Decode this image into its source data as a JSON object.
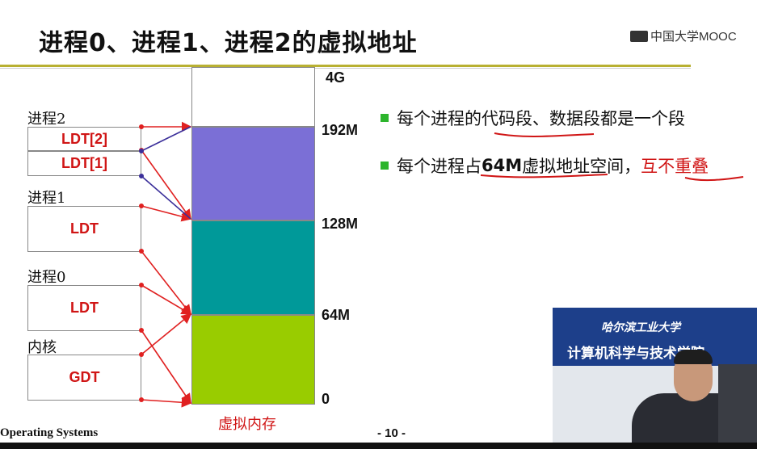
{
  "slide": {
    "title": "进程0、进程1、进程2的虚拟地址",
    "logo_text": "中国大学MOOC",
    "process_labels": {
      "p2": "进程2",
      "p1": "进程1",
      "p0": "进程0",
      "kernel": "内核"
    },
    "boxes": {
      "ldt2": "LDT[2]",
      "ldt1": "LDT[1]",
      "ldt_p1": "LDT",
      "ldt_p0": "LDT",
      "gdt": "GDT"
    },
    "addresses": {
      "a4g": "4G",
      "a192": "192M",
      "a128": "128M",
      "a64": "64M",
      "a0": "0"
    },
    "segment_colors": {
      "kernel": "#99cc00",
      "p1": "#009999",
      "p2": "#7b6fd6"
    },
    "bullets": {
      "b1": {
        "pre": "每个进程的",
        "u": "代码段、数据段",
        "post": "都是一个段"
      },
      "b2": {
        "pre": "每个进程占",
        "bold": "64M",
        "mid": "虚拟地址",
        "mid2": "空间，",
        "red": "互不重叠"
      }
    },
    "memory_caption": "虚拟内存",
    "footer": {
      "course": "Operating Systems",
      "page": "- 10 -"
    },
    "video": {
      "school": "哈尔滨工业大学",
      "dept": "计算机科学与技术学院"
    }
  }
}
